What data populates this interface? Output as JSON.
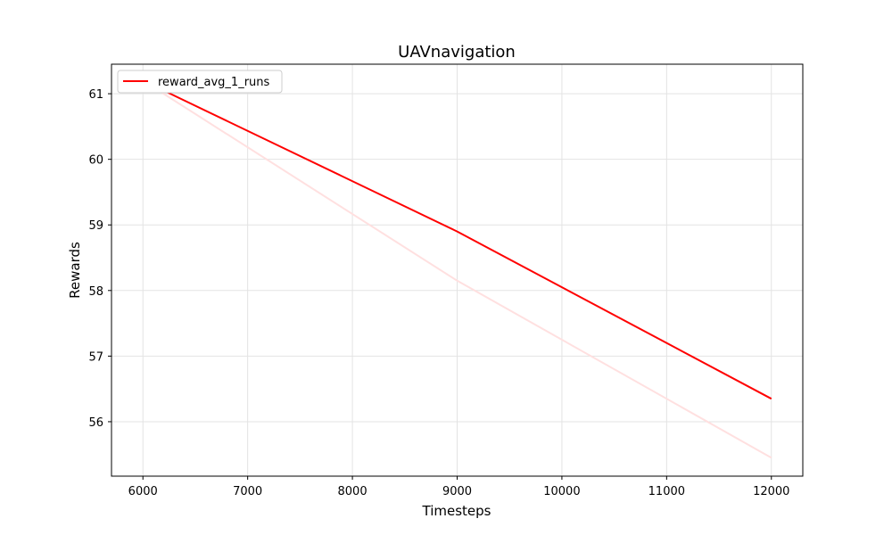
{
  "chart_data": {
    "type": "line",
    "title": "UAVnavigation",
    "xlabel": "Timesteps",
    "ylabel": "Rewards",
    "xlim": [
      5700,
      12300
    ],
    "ylim": [
      55.17,
      61.45
    ],
    "xticks": [
      6000,
      7000,
      8000,
      9000,
      10000,
      11000,
      12000
    ],
    "yticks": [
      56,
      57,
      58,
      59,
      60,
      61
    ],
    "grid": true,
    "legend_position": "top-left",
    "series": [
      {
        "name": "reward_avg_1_runs",
        "color": "#ff0000",
        "x": [
          6000,
          9000,
          12000
        ],
        "y": [
          61.2,
          58.9,
          56.35
        ]
      },
      {
        "name": "",
        "color": "#ffe0e0",
        "x": [
          6000,
          9000,
          12000
        ],
        "y": [
          61.2,
          58.15,
          55.45
        ]
      }
    ]
  }
}
